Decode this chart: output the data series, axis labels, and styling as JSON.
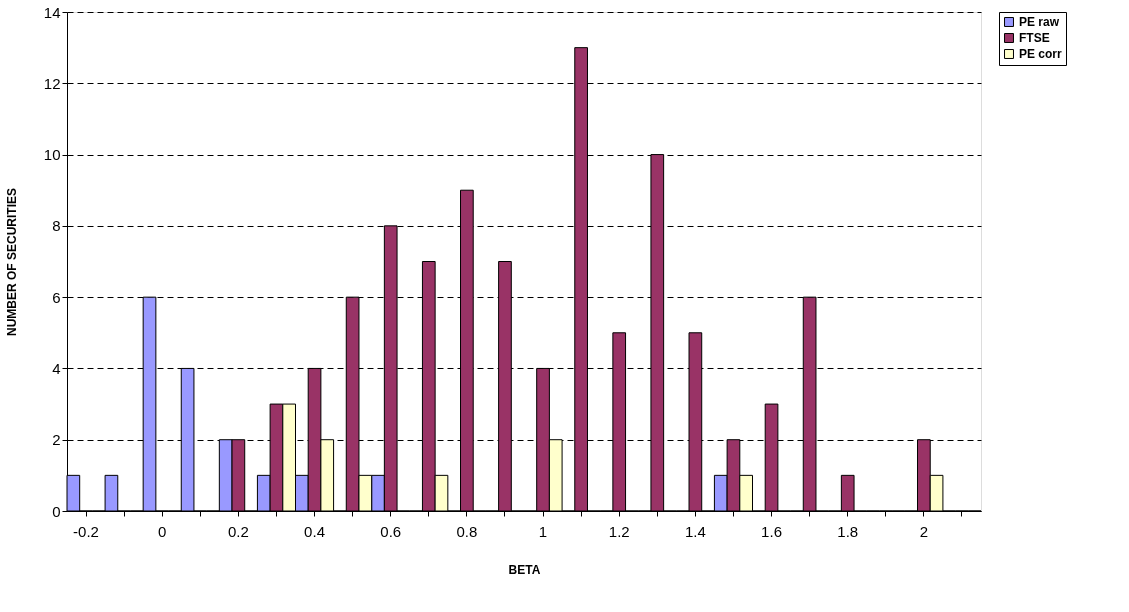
{
  "chart_data": {
    "type": "bar",
    "xlabel": "BETA",
    "ylabel": "NUMBER OF SECURITIES",
    "categories": [
      "-0.2",
      null,
      "0",
      null,
      "0.2",
      null,
      "0.4",
      null,
      "0.6",
      null,
      "0.8",
      null,
      "1",
      null,
      "1.2",
      null,
      "1.4",
      null,
      "1.6",
      null,
      "1.8",
      null,
      "2",
      null
    ],
    "series": [
      {
        "name": "PE raw",
        "color": "#9999ff",
        "values": [
          1,
          1,
          6,
          4,
          2,
          1,
          1,
          0,
          1,
          0,
          0,
          0,
          0,
          0,
          0,
          0,
          0,
          1,
          0,
          0,
          0,
          0,
          0,
          0
        ]
      },
      {
        "name": "FTSE",
        "color": "#993366",
        "values": [
          0,
          0,
          0,
          0,
          2,
          3,
          4,
          6,
          8,
          7,
          9,
          7,
          4,
          13,
          5,
          10,
          5,
          2,
          3,
          6,
          1,
          0,
          2,
          0
        ]
      },
      {
        "name": "PE corr",
        "color": "#ffffcc",
        "values": [
          0,
          0,
          0,
          0,
          0,
          3,
          2,
          1,
          0,
          1,
          0,
          0,
          2,
          0,
          0,
          0,
          0,
          1,
          0,
          0,
          0,
          0,
          1,
          0
        ]
      }
    ],
    "ylim": [
      0,
      14
    ],
    "yticks": [
      0,
      2,
      4,
      6,
      8,
      10,
      12,
      14
    ],
    "grid": "y",
    "legend": "right"
  }
}
